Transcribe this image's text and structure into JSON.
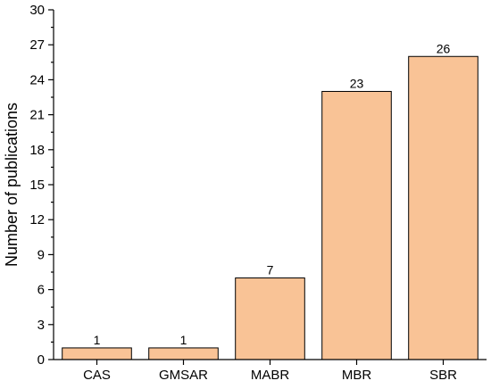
{
  "chart_data": {
    "type": "bar",
    "categories": [
      "CAS",
      "GMSAR",
      "MABR",
      "MBR",
      "SBR"
    ],
    "values": [
      1,
      1,
      7,
      23,
      26
    ],
    "data_labels": [
      "1",
      "1",
      "7",
      "23",
      "26"
    ],
    "title": "",
    "xlabel": "",
    "ylabel": "Number of publications",
    "ylim": [
      0,
      30
    ],
    "yticks": [
      "0",
      "3",
      "6",
      "9",
      "12",
      "15",
      "18",
      "21",
      "24",
      "27",
      "30"
    ],
    "grid": false,
    "legend": "none",
    "colors": {
      "bar_fill": "#f9c396",
      "bar_stroke": "#000000"
    }
  }
}
